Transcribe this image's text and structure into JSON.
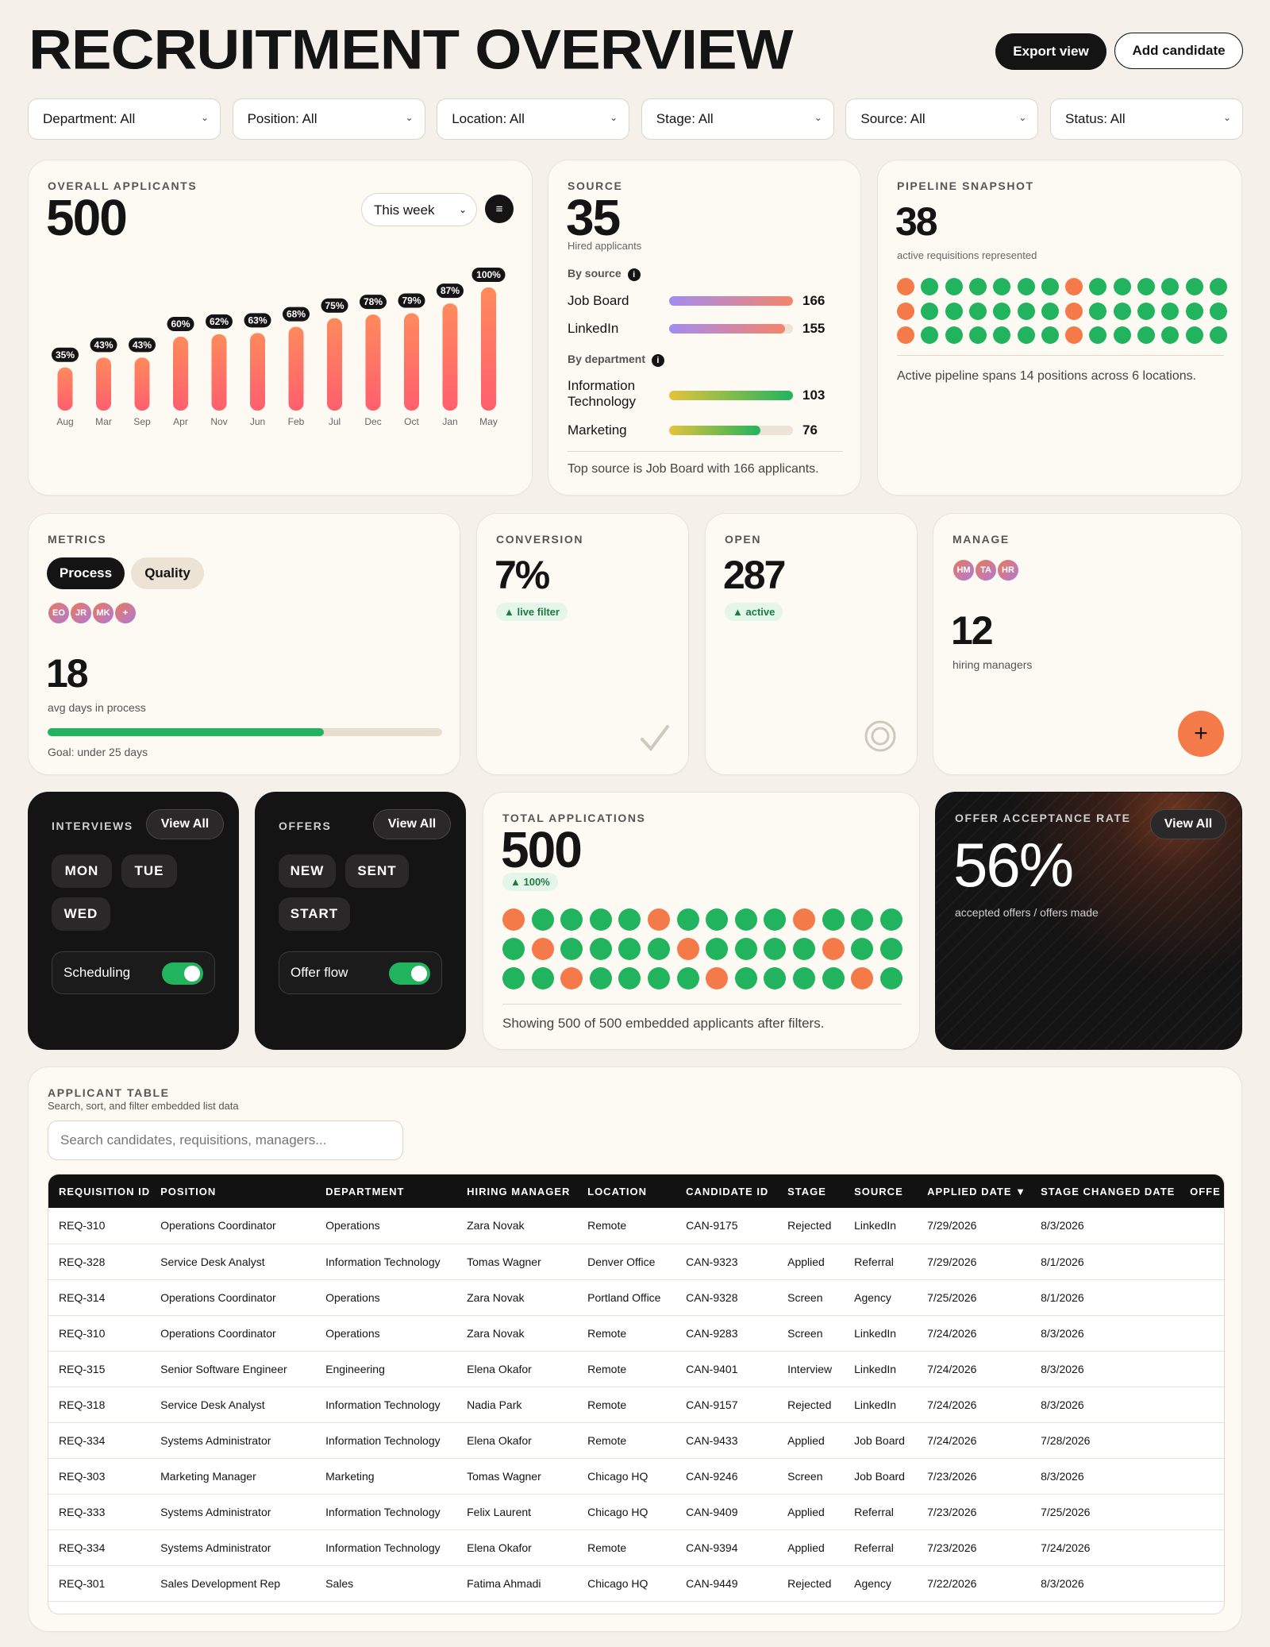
{
  "header": {
    "title": "RECRUITMENT OVERVIEW",
    "export_label": "Export view",
    "add_label": "Add candidate"
  },
  "filters": [
    "Department: All",
    "Position: All",
    "Location: All",
    "Stage: All",
    "Source: All",
    "Status: All"
  ],
  "overall": {
    "label": "OVERALL APPLICANTS",
    "value": "500",
    "period": "This week",
    "menu_icon": "menu-icon"
  },
  "chart_data": {
    "type": "bar",
    "categories": [
      "Aug",
      "Mar",
      "Sep",
      "Apr",
      "Nov",
      "Jun",
      "Feb",
      "Jul",
      "Dec",
      "Oct",
      "Jan",
      "May"
    ],
    "values": [
      35,
      43,
      43,
      60,
      62,
      63,
      68,
      75,
      78,
      79,
      87,
      100
    ],
    "data_labels": [
      "35%",
      "43%",
      "43%",
      "60%",
      "62%",
      "63%",
      "68%",
      "75%",
      "78%",
      "79%",
      "87%",
      "100%"
    ],
    "ylim": [
      0,
      100
    ]
  },
  "source": {
    "label": "SOURCE",
    "value": "35",
    "sub": "Hired applicants",
    "by_source": "By source",
    "items": [
      {
        "name": "Job Board",
        "value": 166,
        "max": 166
      },
      {
        "name": "LinkedIn",
        "value": 155,
        "max": 166
      }
    ],
    "by_department": "By department",
    "dept": [
      {
        "name": "Information Technology",
        "value": 103,
        "max": 103
      },
      {
        "name": "Marketing",
        "value": 76,
        "max": 103
      }
    ],
    "footer": "Top source is Job Board with 166 applicants."
  },
  "pipeline": {
    "label": "PIPELINE SNAPSHOT",
    "value": "38",
    "sub": "active requisitions represented",
    "footer": "Active pipeline spans 14 positions across 6 locations.",
    "rows": [
      [
        "o",
        "g",
        "g",
        "g",
        "g",
        "g",
        "g",
        "o",
        "g",
        "g",
        "g",
        "g",
        "g",
        "g"
      ],
      [
        "o",
        "g",
        "g",
        "g",
        "g",
        "g",
        "g",
        "o",
        "g",
        "g",
        "g",
        "g",
        "g",
        "g"
      ],
      [
        "o",
        "g",
        "g",
        "g",
        "g",
        "g",
        "g",
        "o",
        "g",
        "g",
        "g",
        "g",
        "g",
        "g"
      ]
    ]
  },
  "metrics": {
    "label": "METRICS",
    "tab_process": "Process",
    "tab_quality": "Quality",
    "avatars": [
      "EO",
      "JR",
      "MK",
      "+"
    ],
    "value": "18",
    "sub": "avg days in process",
    "progress": 0.7,
    "goal": "Goal: under 25 days"
  },
  "conversion": {
    "label": "CONVERSION",
    "value": "7%",
    "pill": "▲ live filter"
  },
  "open": {
    "label": "OPEN",
    "value": "287",
    "pill": "▲ active"
  },
  "manage": {
    "label": "MANAGE",
    "avatars": [
      "HM",
      "TA",
      "HR"
    ],
    "value": "12",
    "sub": "hiring managers",
    "add_icon": "plus-icon"
  },
  "interviews": {
    "label": "INTERVIEWS",
    "view_all": "View All",
    "days": [
      "MON",
      "TUE",
      "WED"
    ],
    "toggle_label": "Scheduling",
    "toggle_on": true
  },
  "offers": {
    "label": "OFFERS",
    "view_all": "View All",
    "states": [
      "NEW",
      "SENT",
      "START"
    ],
    "toggle_label": "Offer flow",
    "toggle_on": true
  },
  "total": {
    "label": "TOTAL APPLICATIONS",
    "value": "500",
    "pill": "▲ 100%",
    "footer": "Showing 500 of 500 embedded applicants after filters.",
    "rows": [
      [
        "o",
        "g",
        "g",
        "g",
        "g",
        "o",
        "g",
        "g",
        "g",
        "g",
        "o",
        "g",
        "g",
        "g"
      ],
      [
        "g",
        "o",
        "g",
        "g",
        "g",
        "g",
        "o",
        "g",
        "g",
        "g",
        "g",
        "o",
        "g",
        "g"
      ],
      [
        "g",
        "g",
        "o",
        "g",
        "g",
        "g",
        "g",
        "o",
        "g",
        "g",
        "g",
        "g",
        "o",
        "g"
      ]
    ]
  },
  "acceptance": {
    "label": "OFFER ACCEPTANCE RATE",
    "view_all": "View All",
    "value": "56%",
    "sub": "accepted offers / offers made"
  },
  "table": {
    "label": "APPLICANT TABLE",
    "sub": "Search, sort, and filter embedded list data",
    "search_placeholder": "Search candidates, requisitions, managers...",
    "columns": [
      "REQUISITION ID",
      "POSITION",
      "DEPARTMENT",
      "HIRING MANAGER",
      "LOCATION",
      "CANDIDATE ID",
      "STAGE",
      "SOURCE",
      "APPLIED DATE ▼",
      "STAGE CHANGED DATE",
      "OFFE"
    ],
    "rows": [
      [
        "REQ-310",
        "Operations Coordinator",
        "Operations",
        "Zara Novak",
        "Remote",
        "CAN-9175",
        "Rejected",
        "LinkedIn",
        "7/29/2026",
        "8/3/2026",
        ""
      ],
      [
        "REQ-328",
        "Service Desk Analyst",
        "Information Technology",
        "Tomas Wagner",
        "Denver Office",
        "CAN-9323",
        "Applied",
        "Referral",
        "7/29/2026",
        "8/1/2026",
        ""
      ],
      [
        "REQ-314",
        "Operations Coordinator",
        "Operations",
        "Zara Novak",
        "Portland Office",
        "CAN-9328",
        "Screen",
        "Agency",
        "7/25/2026",
        "8/1/2026",
        ""
      ],
      [
        "REQ-310",
        "Operations Coordinator",
        "Operations",
        "Zara Novak",
        "Remote",
        "CAN-9283",
        "Screen",
        "LinkedIn",
        "7/24/2026",
        "8/3/2026",
        ""
      ],
      [
        "REQ-315",
        "Senior Software Engineer",
        "Engineering",
        "Elena Okafor",
        "Remote",
        "CAN-9401",
        "Interview",
        "LinkedIn",
        "7/24/2026",
        "8/3/2026",
        ""
      ],
      [
        "REQ-318",
        "Service Desk Analyst",
        "Information Technology",
        "Nadia Park",
        "Remote",
        "CAN-9157",
        "Rejected",
        "LinkedIn",
        "7/24/2026",
        "8/3/2026",
        ""
      ],
      [
        "REQ-334",
        "Systems Administrator",
        "Information Technology",
        "Elena Okafor",
        "Remote",
        "CAN-9433",
        "Applied",
        "Job Board",
        "7/24/2026",
        "7/28/2026",
        ""
      ],
      [
        "REQ-303",
        "Marketing Manager",
        "Marketing",
        "Tomas Wagner",
        "Chicago HQ",
        "CAN-9246",
        "Screen",
        "Job Board",
        "7/23/2026",
        "8/3/2026",
        ""
      ],
      [
        "REQ-333",
        "Systems Administrator",
        "Information Technology",
        "Felix Laurent",
        "Chicago HQ",
        "CAN-9409",
        "Applied",
        "Referral",
        "7/23/2026",
        "7/25/2026",
        ""
      ],
      [
        "REQ-334",
        "Systems Administrator",
        "Information Technology",
        "Elena Okafor",
        "Remote",
        "CAN-9394",
        "Applied",
        "Referral",
        "7/23/2026",
        "7/24/2026",
        ""
      ],
      [
        "REQ-301",
        "Sales Development Rep",
        "Sales",
        "Fatima Ahmadi",
        "Chicago HQ",
        "CAN-9449",
        "Rejected",
        "Agency",
        "7/22/2026",
        "8/3/2026",
        ""
      ]
    ]
  },
  "colors": {
    "green": "#22b35e",
    "orange": "#f47a4a",
    "dark": "#151414"
  }
}
